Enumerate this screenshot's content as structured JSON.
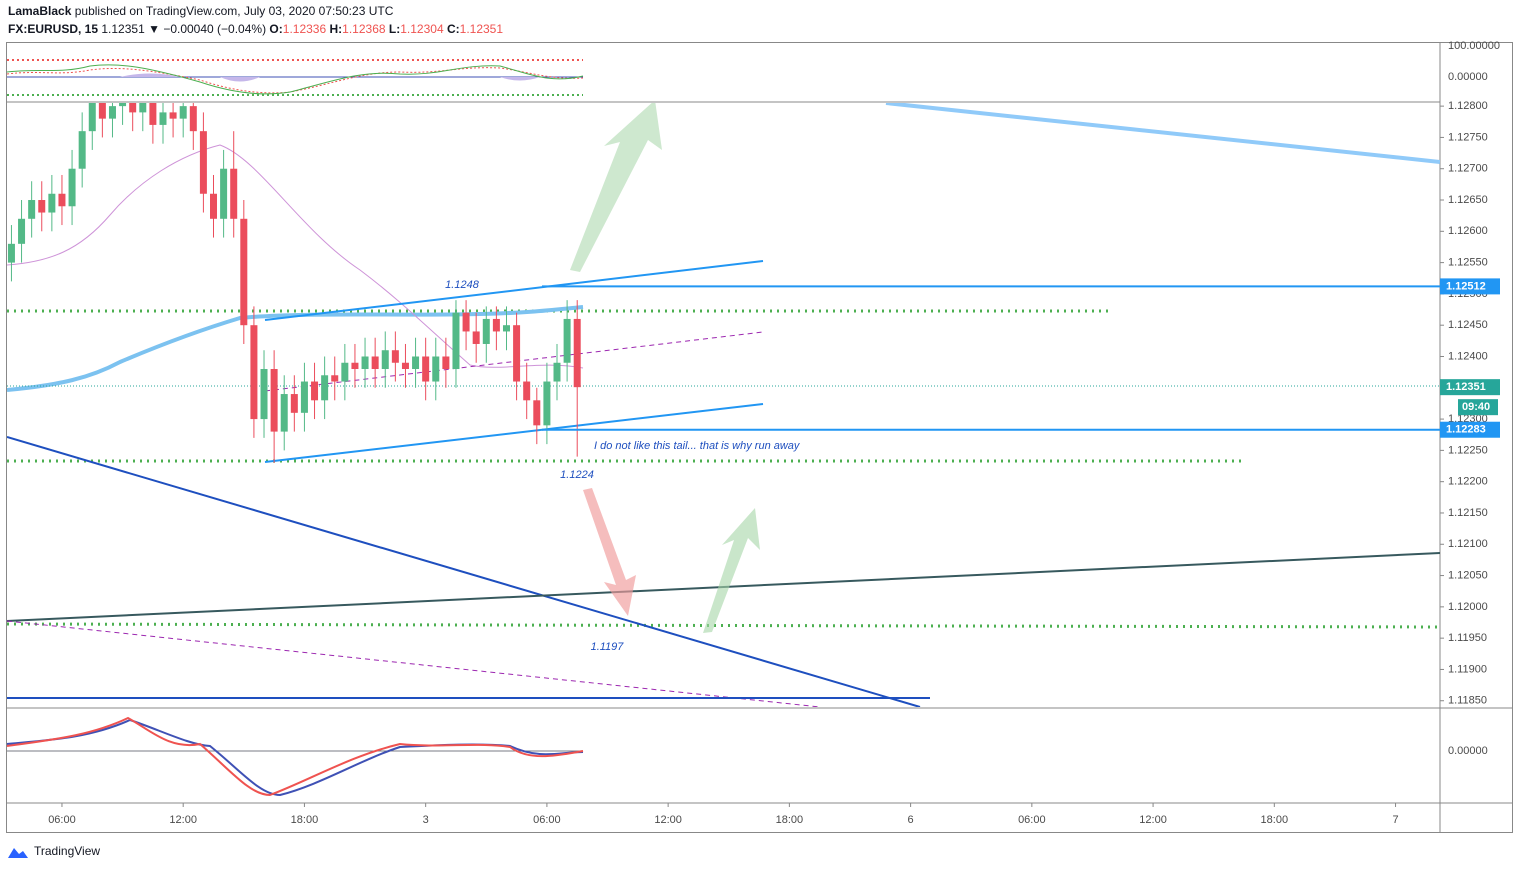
{
  "header": {
    "publisher": "LamaBlack",
    "published": "published on TradingView.com, July 03, 2020 07:50:23 UTC",
    "symbol": "FX:EURUSD, 15",
    "last": "1.12351",
    "change": "▼ −0.00040 (−0.04%)",
    "quote": [
      {
        "k": "O:",
        "v": "1.12336"
      },
      {
        "k": "H:",
        "v": "1.12368"
      },
      {
        "k": "L:",
        "v": "1.12304"
      },
      {
        "k": "C:",
        "v": "1.12351"
      }
    ]
  },
  "chart_data": {
    "type": "candlestick",
    "x": [
      3.5,
      4,
      4.5,
      5,
      5.5,
      6,
      6.5,
      7,
      7.5,
      8,
      8.5,
      9,
      9.5,
      10,
      10.5,
      11,
      11.5,
      12,
      12.5,
      13,
      13.5,
      14,
      14.5,
      15,
      15.5,
      16,
      16.5,
      17,
      17.5,
      18,
      18.5,
      19,
      19.5,
      20,
      20.5,
      21,
      21.5,
      22,
      22.5,
      23,
      23.5,
      24,
      24.5,
      25,
      25.5,
      26,
      26.5,
      27,
      27.5,
      28,
      28.5,
      29,
      29.5,
      30,
      30.5,
      31,
      31.5
    ],
    "open": [
      1.1255,
      1.1258,
      1.1262,
      1.1265,
      1.1263,
      1.1266,
      1.1264,
      1.127,
      1.1276,
      1.1281,
      1.1278,
      1.128,
      1.1282,
      1.1279,
      1.1281,
      1.1277,
      1.1279,
      1.1278,
      1.128,
      1.1276,
      1.1266,
      1.1262,
      1.127,
      1.1262,
      1.1245,
      1.123,
      1.1238,
      1.1228,
      1.1234,
      1.1231,
      1.1236,
      1.1233,
      1.1237,
      1.1236,
      1.1239,
      1.1238,
      1.124,
      1.1238,
      1.1241,
      1.1239,
      1.1238,
      1.124,
      1.1236,
      1.124,
      1.1238,
      1.1247,
      1.1244,
      1.1242,
      1.1246,
      1.1244,
      1.1245,
      1.1236,
      1.1233,
      1.1229,
      1.1236,
      1.1239,
      1.1246
    ],
    "high": [
      1.1261,
      1.1265,
      1.1268,
      1.1268,
      1.1269,
      1.1269,
      1.1273,
      1.1279,
      1.1284,
      1.1284,
      1.1283,
      1.1285,
      1.1285,
      1.1284,
      1.1284,
      1.1282,
      1.1282,
      1.1283,
      1.1283,
      1.1279,
      1.1269,
      1.1273,
      1.1276,
      1.1265,
      1.1248,
      1.1241,
      1.1241,
      1.1237,
      1.1237,
      1.1239,
      1.1239,
      1.124,
      1.124,
      1.1242,
      1.1242,
      1.1243,
      1.1243,
      1.1244,
      1.1244,
      1.1242,
      1.1243,
      1.1243,
      1.1243,
      1.1243,
      1.1249,
      1.1249,
      1.1247,
      1.1248,
      1.1248,
      1.1248,
      1.1247,
      1.1239,
      1.1235,
      1.1239,
      1.1242,
      1.1249,
      1.1249
    ],
    "low": [
      1.1252,
      1.1255,
      1.1259,
      1.126,
      1.126,
      1.1261,
      1.1261,
      1.1267,
      1.1273,
      1.1275,
      1.1275,
      1.1277,
      1.1276,
      1.1276,
      1.1274,
      1.1274,
      1.1275,
      1.1275,
      1.1273,
      1.1263,
      1.1259,
      1.1259,
      1.1259,
      1.1242,
      1.1227,
      1.1227,
      1.1223,
      1.1225,
      1.1228,
      1.1228,
      1.123,
      1.123,
      1.1233,
      1.1233,
      1.1235,
      1.1235,
      1.1235,
      1.1235,
      1.1236,
      1.1235,
      1.1235,
      1.1233,
      1.1233,
      1.1235,
      1.1235,
      1.1241,
      1.1239,
      1.1239,
      1.1241,
      1.1241,
      1.1233,
      1.123,
      1.1226,
      1.1226,
      1.1233,
      1.1236,
      1.1224
    ],
    "close": [
      1.1258,
      1.1262,
      1.1265,
      1.1263,
      1.1266,
      1.1264,
      1.127,
      1.1276,
      1.1281,
      1.1278,
      1.128,
      1.1282,
      1.1279,
      1.1281,
      1.1277,
      1.1279,
      1.1278,
      1.128,
      1.1276,
      1.1266,
      1.1262,
      1.127,
      1.1262,
      1.1245,
      1.123,
      1.1238,
      1.1228,
      1.1234,
      1.1231,
      1.1236,
      1.1233,
      1.1237,
      1.1236,
      1.1239,
      1.1238,
      1.124,
      1.1238,
      1.1241,
      1.1239,
      1.1238,
      1.124,
      1.1236,
      1.124,
      1.1238,
      1.1247,
      1.1244,
      1.1242,
      1.1246,
      1.1244,
      1.1245,
      1.1236,
      1.1233,
      1.1229,
      1.1236,
      1.1239,
      1.1246,
      1.12351
    ],
    "up_color": "#53b987",
    "down_color": "#eb4d5c",
    "xlim": [
      3.28,
      74.2
    ],
    "xticks": [
      {
        "value": 6,
        "label": "06:00"
      },
      {
        "value": 12,
        "label": "12:00"
      },
      {
        "value": 18,
        "label": "18:00"
      },
      {
        "value": 24,
        "label": "3"
      },
      {
        "value": 30,
        "label": "06:00"
      },
      {
        "value": 36,
        "label": "12:00"
      },
      {
        "value": 42,
        "label": "18:00"
      },
      {
        "value": 48,
        "label": "6"
      },
      {
        "value": 54,
        "label": "06:00"
      },
      {
        "value": 60,
        "label": "12:00"
      },
      {
        "value": 66,
        "label": "18:00"
      },
      {
        "value": 72,
        "label": "7"
      }
    ],
    "ylim": [
      1.1184,
      1.12805
    ],
    "yticks": [
      {
        "value": 1.128,
        "label": "1.12800"
      },
      {
        "value": 1.1275,
        "label": "1.12750"
      },
      {
        "value": 1.127,
        "label": "1.12700"
      },
      {
        "value": 1.1265,
        "label": "1.12650"
      },
      {
        "value": 1.126,
        "label": "1.12600"
      },
      {
        "value": 1.1255,
        "label": "1.12550"
      },
      {
        "value": 1.125,
        "label": "1.12500"
      },
      {
        "value": 1.1245,
        "label": "1.12450"
      },
      {
        "value": 1.124,
        "label": "1.12400"
      },
      {
        "value": 1.1235,
        "label": "1.12350"
      },
      {
        "value": 1.123,
        "label": "1.12300"
      },
      {
        "value": 1.1225,
        "label": "1.12250"
      },
      {
        "value": 1.122,
        "label": "1.12200"
      },
      {
        "value": 1.1215,
        "label": "1.12150"
      },
      {
        "value": 1.121,
        "label": "1.12100"
      },
      {
        "value": 1.1205,
        "label": "1.12050"
      },
      {
        "value": 1.12,
        "label": "1.12000"
      },
      {
        "value": 1.1195,
        "label": "1.11950"
      },
      {
        "value": 1.119,
        "label": "1.11900"
      },
      {
        "value": 1.1185,
        "label": "1.11850"
      }
    ],
    "grid": false,
    "price_lines": [
      {
        "value": 1.12512,
        "color": "#2196f3"
      },
      {
        "value": 1.12283,
        "color": "#2196f3"
      }
    ],
    "last_price": 1.12351,
    "last_color": "#26a69a",
    "countdown": "09:40",
    "annotations": [
      "1.1248",
      "1.1224",
      "1.1197",
      "I do not like this tail... that is why run away"
    ]
  },
  "upper_pane_ticks": [
    "100.00000",
    "0.00000"
  ],
  "lower_pane_ticks": [
    "0.00000"
  ],
  "footer": "TradingView"
}
